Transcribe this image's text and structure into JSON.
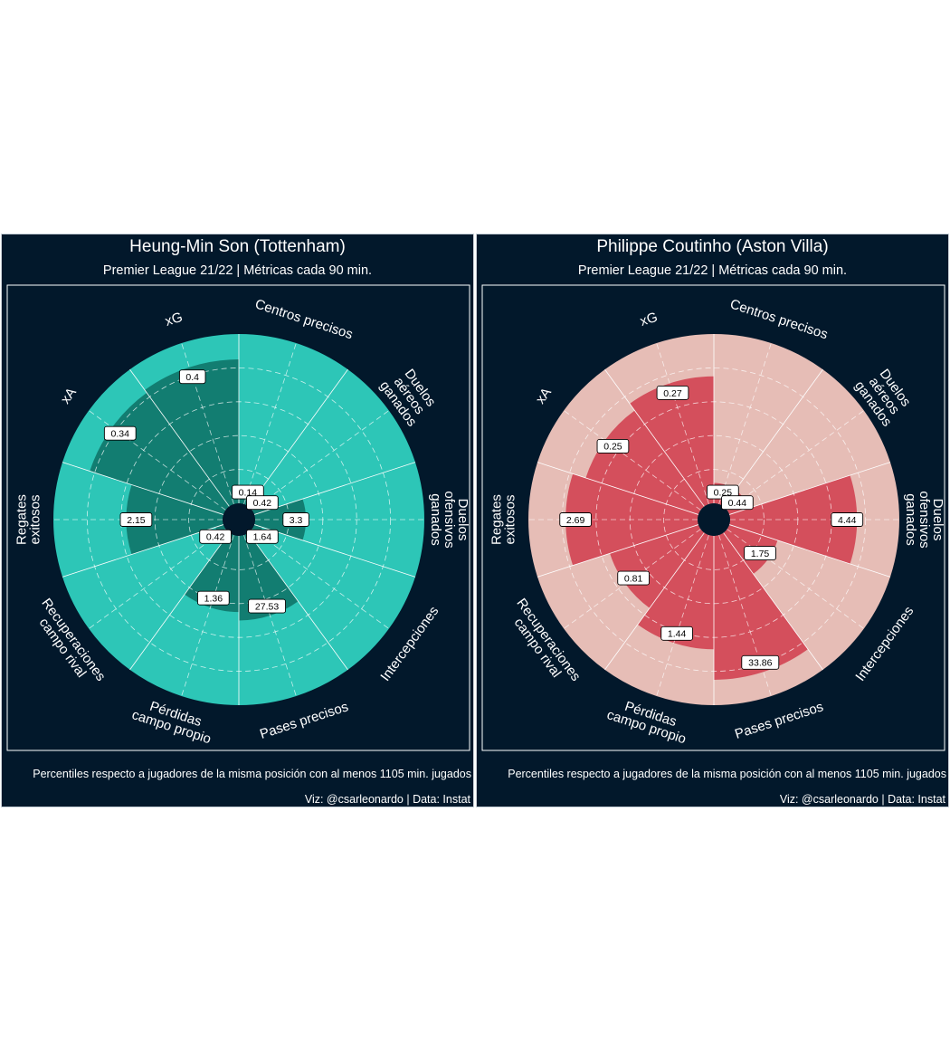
{
  "colors": {
    "background": "#02182b",
    "son_base": "#2dc6b7",
    "son_value": "#127d71",
    "coutinho_base": "#e6bdb6",
    "coutinho_value": "#d44f5c"
  },
  "chart_data": [
    {
      "type": "radar",
      "title": "Heung-Min Son (Tottenham)",
      "subtitle": "Premier League 21/22 | Métricas cada 90 min.",
      "caption": "Percentiles respecto a jugadores de la misma posición con al menos 1105 min. jugados",
      "credit": "Viz: @csarleonardo  |  Data: Instat",
      "categories": [
        "Centros precisos",
        "Duelos\naéreos\nganados",
        "Duelos\nofensivos\nganados",
        "Intercepciones",
        "Pases precisos",
        "Pérdidas\ncampo propio",
        "Recuperaciones\ncampo rival",
        "Regates\nexitosos",
        "xA",
        "xG"
      ],
      "percentiles": [
        6,
        8,
        30,
        5,
        50,
        45,
        5,
        57,
        83,
        85
      ],
      "value_labels": [
        "0.14",
        "0.42",
        "3.3",
        "1.64",
        "27.53",
        "1.36",
        "0.42",
        "2.15",
        "0.34",
        "0.4"
      ],
      "ylim": [
        0,
        100
      ]
    },
    {
      "type": "radar",
      "title": "Philippe Coutinho (Aston Villa)",
      "subtitle": "Premier League 21/22 | Métricas cada 90 min.",
      "caption": "Percentiles respecto a jugadores de la misma posición con al menos 1105 min. jugados",
      "credit": "Viz: @csarleonardo  |  Data: Instat",
      "categories": [
        "Centros precisos",
        "Duelos\naéreos\nganados",
        "Duelos\nofensivos\nganados",
        "Intercepciones",
        "Pases precisos",
        "Pérdidas\ncampo propio",
        "Recuperaciones\ncampo rival",
        "Regates\nexitosos",
        "xA",
        "xG"
      ],
      "percentiles": [
        12,
        12,
        75,
        30,
        85,
        67,
        55,
        78,
        70,
        75
      ],
      "value_labels": [
        "0.25",
        "0.44",
        "4.44",
        "1.75",
        "33.86",
        "1.44",
        "0.81",
        "2.69",
        "0.25",
        "0.27"
      ],
      "ylim": [
        0,
        100
      ]
    }
  ]
}
